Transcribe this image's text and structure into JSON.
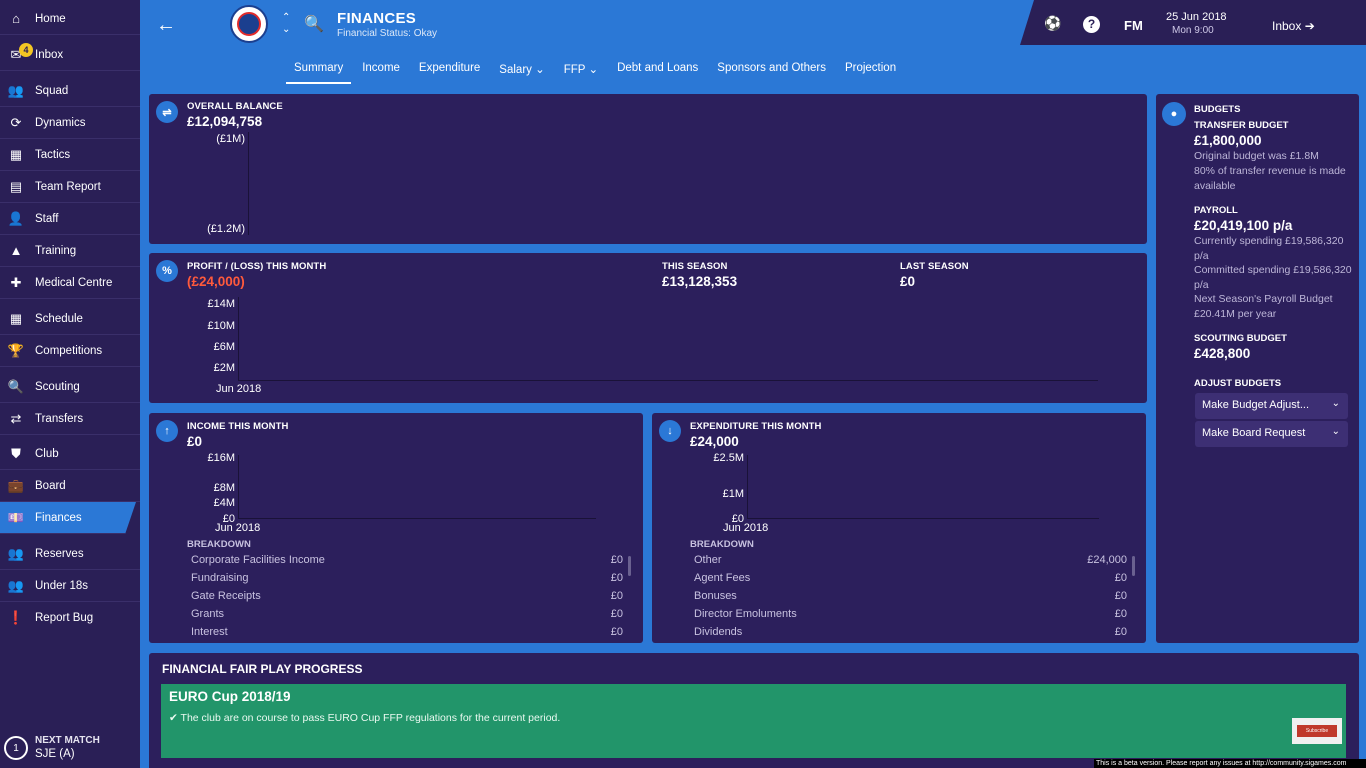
{
  "sidebar": {
    "items": [
      {
        "label": "Home",
        "icon": "home-icon"
      },
      {
        "label": "Inbox",
        "icon": "inbox-icon",
        "badge": "4"
      },
      {
        "label": "Squad",
        "icon": "squad-icon"
      },
      {
        "label": "Dynamics",
        "icon": "dynamics-icon"
      },
      {
        "label": "Tactics",
        "icon": "tactics-icon"
      },
      {
        "label": "Team Report",
        "icon": "team-report-icon"
      },
      {
        "label": "Staff",
        "icon": "staff-icon"
      },
      {
        "label": "Training",
        "icon": "training-icon"
      },
      {
        "label": "Medical Centre",
        "icon": "medical-icon"
      },
      {
        "label": "Schedule",
        "icon": "calendar-icon"
      },
      {
        "label": "Competitions",
        "icon": "trophy-icon"
      },
      {
        "label": "Scouting",
        "icon": "scouting-icon"
      },
      {
        "label": "Transfers",
        "icon": "transfers-icon"
      },
      {
        "label": "Club",
        "icon": "club-icon"
      },
      {
        "label": "Board",
        "icon": "board-icon"
      },
      {
        "label": "Finances",
        "icon": "finances-icon",
        "active": true
      },
      {
        "label": "Reserves",
        "icon": "reserves-icon"
      },
      {
        "label": "Under 18s",
        "icon": "under18s-icon"
      },
      {
        "label": "Report Bug",
        "icon": "report-bug-icon"
      }
    ],
    "next_match": {
      "label": "NEXT MATCH",
      "team": "SJE (A)",
      "number": "1"
    }
  },
  "header": {
    "title": "FINANCES",
    "status": "Financial Status: Okay",
    "fm": "FM",
    "date": "25 Jun 2018",
    "time": "Mon 9:00",
    "inbox": "Inbox"
  },
  "tabs": [
    {
      "label": "Summary",
      "active": true
    },
    {
      "label": "Income"
    },
    {
      "label": "Expenditure"
    },
    {
      "label": "Salary ⌄"
    },
    {
      "label": "FFP ⌄"
    },
    {
      "label": "Debt and Loans"
    },
    {
      "label": "Sponsors and Others"
    },
    {
      "label": "Projection"
    }
  ],
  "overall_balance": {
    "label": "OVERALL BALANCE",
    "value": "£12,094,758",
    "ticks": [
      "(£1M)",
      "(£1.2M)"
    ]
  },
  "profit": {
    "label": "PROFIT / (LOSS) THIS MONTH",
    "value": "(£24,000)",
    "season_label": "THIS SEASON",
    "season_value": "£13,128,353",
    "last_label": "LAST SEASON",
    "last_value": "£0",
    "ticks": [
      "£14M",
      "£10M",
      "£6M",
      "£2M"
    ],
    "xlabel": "Jun 2018"
  },
  "income": {
    "label": "INCOME THIS MONTH",
    "value": "£0",
    "ticks": [
      "£16M",
      "£8M",
      "£4M",
      "£0"
    ],
    "xlabel": "Jun 2018",
    "breakdown_label": "BREAKDOWN",
    "rows": [
      {
        "name": "Corporate Facilities Income",
        "value": "£0"
      },
      {
        "name": "Fundraising",
        "value": "£0"
      },
      {
        "name": "Gate Receipts",
        "value": "£0"
      },
      {
        "name": "Grants",
        "value": "£0"
      },
      {
        "name": "Interest",
        "value": "£0"
      }
    ]
  },
  "expenditure": {
    "label": "EXPENDITURE THIS MONTH",
    "value": "£24,000",
    "ticks": [
      "£2.5M",
      "£1M",
      "£0"
    ],
    "xlabel": "Jun 2018",
    "breakdown_label": "BREAKDOWN",
    "rows": [
      {
        "name": "Other",
        "value": "£24,000"
      },
      {
        "name": "Agent Fees",
        "value": "£0"
      },
      {
        "name": "Bonuses",
        "value": "£0"
      },
      {
        "name": "Director Emoluments",
        "value": "£0"
      },
      {
        "name": "Dividends",
        "value": "£0"
      }
    ]
  },
  "budgets": {
    "title": "BUDGETS",
    "transfer_label": "TRANSFER BUDGET",
    "transfer_value": "£1,800,000",
    "transfer_note1": "Original budget was £1.8M",
    "transfer_note2": "80% of transfer revenue is made available",
    "payroll_label": "PAYROLL",
    "payroll_value": "£20,419,100 p/a",
    "payroll_note1": "Currently spending £19,586,320 p/a",
    "payroll_note2": "Committed spending £19,586,320 p/a",
    "payroll_note3": "Next Season's Payroll Budget £20.41M per year",
    "scouting_label": "SCOUTING BUDGET",
    "scouting_value": "£428,800",
    "adjust_label": "ADJUST BUDGETS",
    "dropdown1": "Make Budget Adjust...",
    "dropdown2": "Make Board Request"
  },
  "ffp": {
    "title": "FINANCIAL FAIR PLAY PROGRESS",
    "competition": "EURO Cup 2018/19",
    "message": "The club are on course to pass EURO Cup FFP regulations for the current period."
  },
  "overlay": {
    "subscribe": "Subscribe",
    "beta": "This is a beta version. Please report any issues at http://community.sigames.com"
  }
}
